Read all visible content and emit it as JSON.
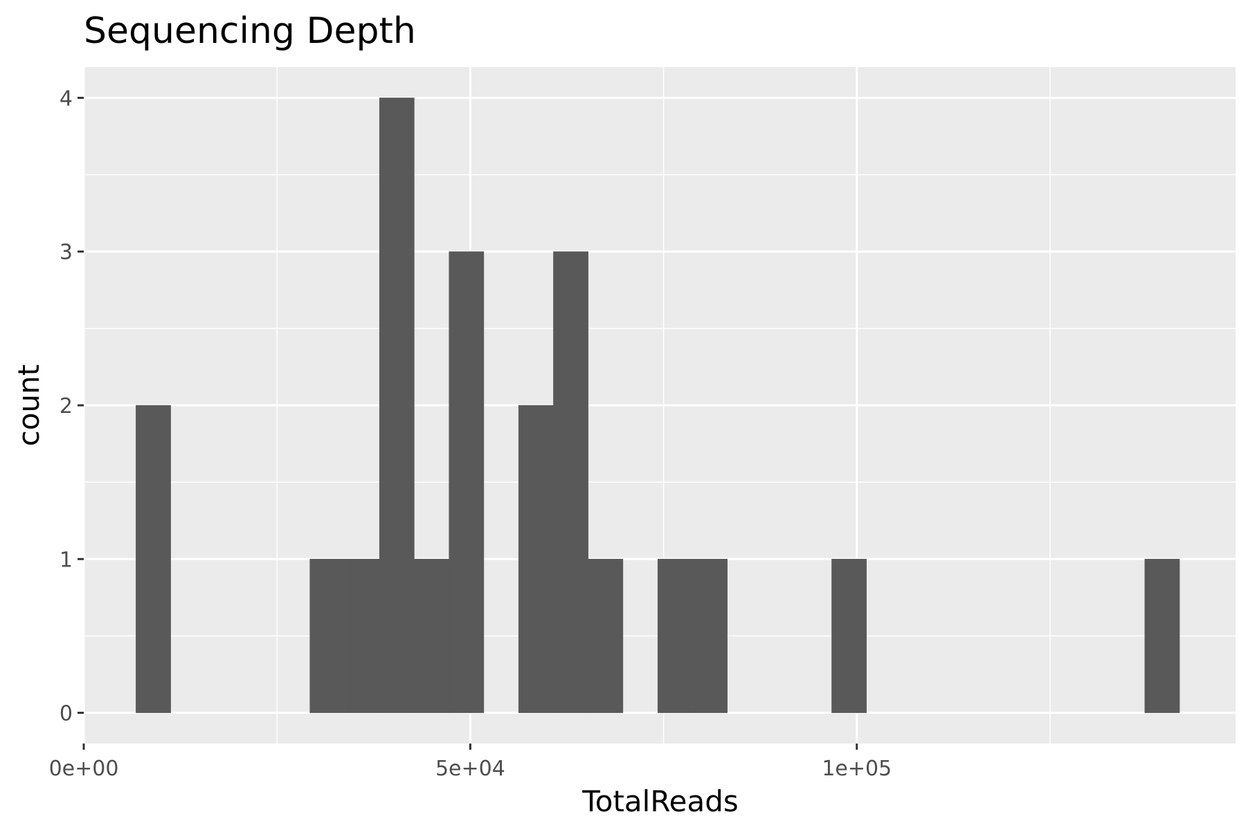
{
  "chart_data": {
    "type": "bar",
    "title": "Sequencing Depth",
    "xlabel": "TotalReads",
    "ylabel": "count",
    "bin_width": 4500,
    "bins": [
      {
        "x_start": 6750,
        "x_end": 11250,
        "count": 2
      },
      {
        "x_start": 29250,
        "x_end": 33750,
        "count": 1
      },
      {
        "x_start": 33750,
        "x_end": 38250,
        "count": 1
      },
      {
        "x_start": 38250,
        "x_end": 42750,
        "count": 4
      },
      {
        "x_start": 42750,
        "x_end": 47250,
        "count": 1
      },
      {
        "x_start": 47250,
        "x_end": 51750,
        "count": 3
      },
      {
        "x_start": 56250,
        "x_end": 60750,
        "count": 2
      },
      {
        "x_start": 60750,
        "x_end": 65250,
        "count": 3
      },
      {
        "x_start": 65250,
        "x_end": 69750,
        "count": 1
      },
      {
        "x_start": 74250,
        "x_end": 78750,
        "count": 1
      },
      {
        "x_start": 78750,
        "x_end": 83250,
        "count": 1
      },
      {
        "x_start": 96750,
        "x_end": 101250,
        "count": 1
      },
      {
        "x_start": 137250,
        "x_end": 141750,
        "count": 1
      }
    ],
    "x_ticks": [
      {
        "value": 0,
        "label": "0e+00"
      },
      {
        "value": 50000,
        "label": "5e+04"
      },
      {
        "value": 100000,
        "label": "1e+05"
      }
    ],
    "x_minor_gridlines": [
      25000,
      75000,
      125000
    ],
    "y_ticks": [
      {
        "value": 0,
        "label": "0"
      },
      {
        "value": 1,
        "label": "1"
      },
      {
        "value": 2,
        "label": "2"
      },
      {
        "value": 3,
        "label": "3"
      },
      {
        "value": 4,
        "label": "4"
      }
    ],
    "y_minor_gridlines": [
      0.5,
      1.5,
      2.5,
      3.5
    ],
    "xlim": [
      0,
      149000
    ],
    "ylim": [
      -0.2,
      4.2
    ],
    "grid": true,
    "legend": "none",
    "colors": {
      "panel_background": "#ebebeb",
      "gridline": "#ffffff",
      "bar_fill": "#595959",
      "tick_mark": "#333333",
      "tick_label": "#4d4d4d"
    }
  }
}
